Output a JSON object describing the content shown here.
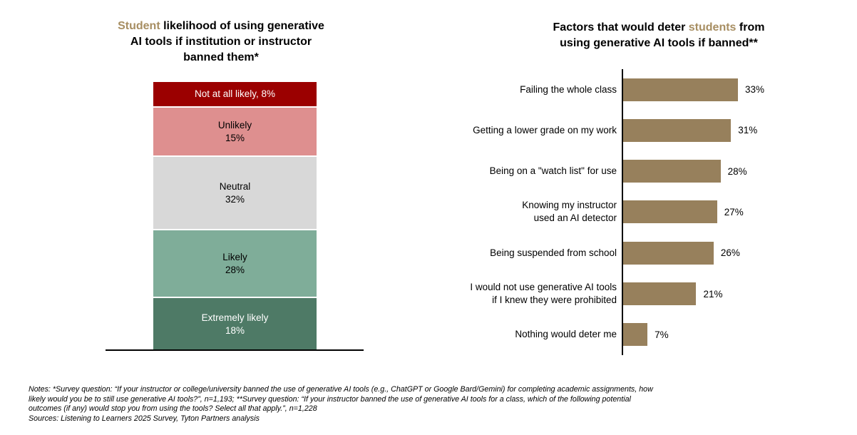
{
  "colors": {
    "accent_tan": "#A78E62",
    "bar_brown": "#97805C",
    "axis_black": "#000000",
    "segment_colors": [
      "#9B0000",
      "#DE8F8F",
      "#D8D8D8",
      "#7FAD99",
      "#4E7A66"
    ],
    "segment_text_colors": [
      "#ffffff",
      "#000000",
      "#000000",
      "#000000",
      "#ffffff"
    ]
  },
  "left_chart": {
    "title_lines": [
      [
        {
          "t": "Student",
          "accent": true
        },
        {
          "t": " likelihood of using generative",
          "accent": false
        }
      ],
      [
        {
          "t": "AI tools if institution or instructor",
          "accent": false
        }
      ],
      [
        {
          "t": "banned them*",
          "accent": false
        }
      ]
    ],
    "segments": [
      {
        "label": "Not at all likely",
        "value": 8,
        "color": "#9B0000",
        "text_color": "#ffffff",
        "single_line": true
      },
      {
        "label": "Unlikely",
        "value": 15,
        "color": "#DE8F8F",
        "text_color": "#000000",
        "single_line": false
      },
      {
        "label": "Neutral",
        "value": 32,
        "color": "#D8D8D8",
        "text_color": "#000000",
        "single_line": false
      },
      {
        "label": "Likely",
        "value": 28,
        "color": "#7FAD99",
        "text_color": "#000000",
        "single_line": false
      },
      {
        "label": "Extremely likely",
        "value": 18,
        "color": "#4E7A66",
        "text_color": "#ffffff",
        "single_line": false
      }
    ]
  },
  "right_chart": {
    "title_lines": [
      [
        {
          "t": "Factors that would deter ",
          "accent": false
        },
        {
          "t": "students",
          "accent": true
        },
        {
          "t": " from",
          "accent": false
        }
      ],
      [
        {
          "t": "using generative AI tools if banned**",
          "accent": false
        }
      ]
    ],
    "bars": [
      {
        "label_lines": [
          "Failing the whole class"
        ],
        "value": 33
      },
      {
        "label_lines": [
          "Getting a lower grade on my work"
        ],
        "value": 31
      },
      {
        "label_lines": [
          "Being on a \"watch list\" for use"
        ],
        "value": 28
      },
      {
        "label_lines": [
          "Knowing my instructor",
          "used an AI detector"
        ],
        "value": 27
      },
      {
        "label_lines": [
          "Being suspended from school"
        ],
        "value": 26
      },
      {
        "label_lines": [
          "I would not use generative AI tools",
          "if I knew they were prohibited"
        ],
        "value": 21
      },
      {
        "label_lines": [
          "Nothing would deter me"
        ],
        "value": 7
      }
    ]
  },
  "notes": {
    "lines": [
      "Notes: *Survey question: “If your instructor or college/university banned the use of generative AI tools (e.g., ChatGPT or Google Bard/Gemini) for completing academic assignments, how",
      "likely would you be to still use generative AI tools?”, n=1,193; **Survey question: “If your instructor banned the use of generative AI tools for a class, which of the following potential",
      "outcomes (if any) would stop you from using the tools? Select all that apply.”, n=1,228",
      "Sources: Listening to Learners 2025 Survey, Tyton Partners analysis"
    ]
  },
  "chart_data": [
    {
      "type": "bar",
      "subtype": "stacked-vertical-single-column",
      "title": "Student likelihood of using generative AI tools if institution or instructor banned them*",
      "categories": [
        "Not at all likely",
        "Unlikely",
        "Neutral",
        "Likely",
        "Extremely likely"
      ],
      "values": [
        8,
        15,
        32,
        28,
        18
      ],
      "unit": "%",
      "colors": [
        "#9B0000",
        "#DE8F8F",
        "#D8D8D8",
        "#7FAD99",
        "#4E7A66"
      ],
      "legend_position": "in-segment-labels",
      "grid": false
    },
    {
      "type": "bar",
      "subtype": "horizontal",
      "title": "Factors that would deter students from using generative AI tools if banned**",
      "categories": [
        "Failing the whole class",
        "Getting a lower grade on my work",
        "Being on a \"watch list\" for use",
        "Knowing my instructor used an AI detector",
        "Being suspended from school",
        "I would not use generative AI tools if I knew they were prohibited",
        "Nothing would deter me"
      ],
      "values": [
        33,
        31,
        28,
        27,
        26,
        21,
        7
      ],
      "unit": "%",
      "bar_color": "#97805C",
      "data_labels": "end-of-bar",
      "xlim": [
        0,
        35
      ],
      "grid": false
    }
  ]
}
